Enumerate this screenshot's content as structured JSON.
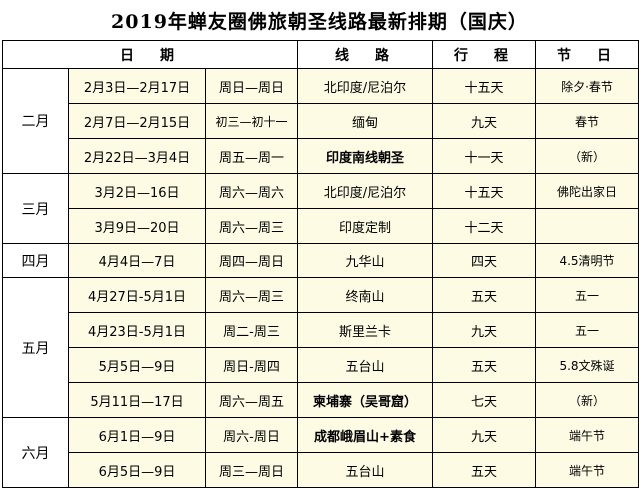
{
  "title": "2019年蝉友圈佛旅朝圣线路最新排期（国庆）",
  "headers": {
    "date": "日　期",
    "route": "线　路",
    "duration": "行　程",
    "festival": "节　日"
  },
  "groups": [
    {
      "month": "二月",
      "rows": [
        {
          "date": "2月3日—2月17日",
          "weekday": "周日—周日",
          "route": "北印度/尼泊尔",
          "route_bold": false,
          "duration": "十五天",
          "festival": "除夕·春节"
        },
        {
          "date": "2月7日—2月15日",
          "weekday": "初三—初十一",
          "route": "缅甸",
          "route_bold": false,
          "duration": "九天",
          "festival": "春节"
        },
        {
          "date": "2月22日—3月4日",
          "weekday": "周五—周一",
          "route": "印度南线朝圣",
          "route_bold": true,
          "duration": "十一天",
          "festival": "（新）"
        }
      ]
    },
    {
      "month": "三月",
      "rows": [
        {
          "date": "3月2日—16日",
          "weekday": "周六—周六",
          "route": "北印度/尼泊尔",
          "route_bold": false,
          "duration": "十五天",
          "festival": "佛陀出家日"
        },
        {
          "date": "3月9日—20日",
          "weekday": "周六—周三",
          "route": "印度定制",
          "route_bold": false,
          "duration": "十二天",
          "festival": ""
        }
      ]
    },
    {
      "month": "四月",
      "rows": [
        {
          "date": "4月4日—7日",
          "weekday": "周四—周日",
          "route": "九华山",
          "route_bold": false,
          "duration": "四天",
          "festival": "4.5清明节"
        }
      ]
    },
    {
      "month": "五月",
      "rows": [
        {
          "date": "4月27日-5月1日",
          "weekday": "周六—周三",
          "route": "终南山",
          "route_bold": false,
          "duration": "五天",
          "festival": "五一"
        },
        {
          "date": "4月23日-5月1日",
          "weekday": "周二-周三",
          "route": "斯里兰卡",
          "route_bold": false,
          "duration": "九天",
          "festival": "五一"
        },
        {
          "date": "5月5日—9日",
          "weekday": "周日-周四",
          "route": "五台山",
          "route_bold": false,
          "duration": "五天",
          "festival": "5.8文殊诞"
        },
        {
          "date": "5月11日—17日",
          "weekday": "周六—周五",
          "route": "柬埔寨（吴哥窟）",
          "route_bold": true,
          "duration": "七天",
          "festival": "（新）"
        }
      ]
    },
    {
      "month": "六月",
      "rows": [
        {
          "date": "6月1日—9日",
          "weekday": "周六-周日",
          "route": "成都峨眉山+素食",
          "route_bold": true,
          "duration": "九天",
          "festival": "端午节"
        },
        {
          "date": "6月5日—9日",
          "weekday": "周三—周日",
          "route": "五台山",
          "route_bold": false,
          "duration": "五天",
          "festival": "端午节"
        }
      ]
    }
  ]
}
